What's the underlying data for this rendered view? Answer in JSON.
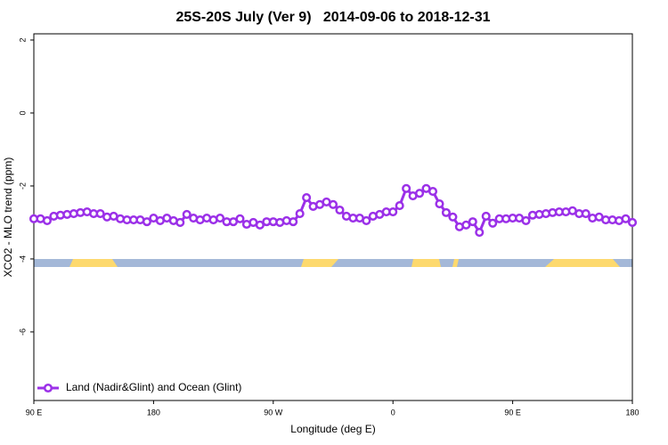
{
  "chart_data": {
    "type": "line",
    "title": "25S-20S July (Ver 9)   2014-09-06 to 2018-12-31",
    "x_label": "Longitude (deg E)",
    "y_label": "XCO2 - MLO trend (ppm)",
    "x": [
      90,
      95,
      100,
      105,
      110,
      115,
      120,
      125,
      130,
      135,
      140,
      145,
      150,
      155,
      160,
      165,
      170,
      175,
      180,
      185,
      190,
      195,
      200,
      205,
      210,
      215,
      220,
      225,
      230,
      235,
      240,
      245,
      250,
      255,
      260,
      265,
      270,
      275,
      280,
      285,
      290,
      295,
      300,
      305,
      310,
      315,
      320,
      325,
      330,
      335,
      340,
      345,
      350,
      355,
      360,
      365,
      370,
      375,
      380,
      385,
      390,
      395,
      400,
      405,
      410,
      415,
      420,
      425,
      430,
      435,
      440,
      445,
      450,
      455,
      460,
      465,
      470,
      475,
      480,
      485,
      490,
      495,
      500,
      505,
      510,
      515,
      520,
      525,
      530,
      535,
      540
    ],
    "series": [
      {
        "name": "Land (Nadir&Glint) and Ocean (Glint)",
        "color": "#9b30e8",
        "values": [
          -2.9,
          -2.9,
          -2.95,
          -2.83,
          -2.8,
          -2.78,
          -2.76,
          -2.73,
          -2.71,
          -2.76,
          -2.76,
          -2.85,
          -2.83,
          -2.9,
          -2.93,
          -2.93,
          -2.93,
          -2.98,
          -2.88,
          -2.95,
          -2.88,
          -2.95,
          -3.0,
          -2.78,
          -2.88,
          -2.93,
          -2.88,
          -2.93,
          -2.88,
          -2.98,
          -2.98,
          -2.9,
          -3.05,
          -3.0,
          -3.07,
          -2.98,
          -2.98,
          -3.0,
          -2.95,
          -2.98,
          -2.76,
          -2.32,
          -2.56,
          -2.51,
          -2.44,
          -2.51,
          -2.66,
          -2.83,
          -2.88,
          -2.88,
          -2.95,
          -2.83,
          -2.78,
          -2.71,
          -2.71,
          -2.54,
          -2.07,
          -2.27,
          -2.2,
          -2.07,
          -2.15,
          -2.49,
          -2.73,
          -2.85,
          -3.12,
          -3.07,
          -2.98,
          -3.27,
          -2.83,
          -3.02,
          -2.9,
          -2.9,
          -2.88,
          -2.88,
          -2.95,
          -2.8,
          -2.78,
          -2.76,
          -2.73,
          -2.71,
          -2.71,
          -2.68,
          -2.76,
          -2.76,
          -2.88,
          -2.85,
          -2.93,
          -2.93,
          -2.95,
          -2.9,
          -3.0
        ]
      }
    ],
    "xlim": [
      90,
      540
    ],
    "xticks": [
      90,
      180,
      {
        "value": 270,
        "label": "90 W"
      },
      {
        "value": 360,
        "label": "0"
      },
      {
        "value": 450,
        "label": "90 E"
      },
      {
        "value": 540,
        "label": "180"
      }
    ],
    "xtick_first_label": "90 E",
    "ylim": [
      -7.88,
      2.17
    ],
    "yticks": [
      2,
      0,
      -2,
      -4,
      -6
    ],
    "legend": "bottom-left"
  }
}
